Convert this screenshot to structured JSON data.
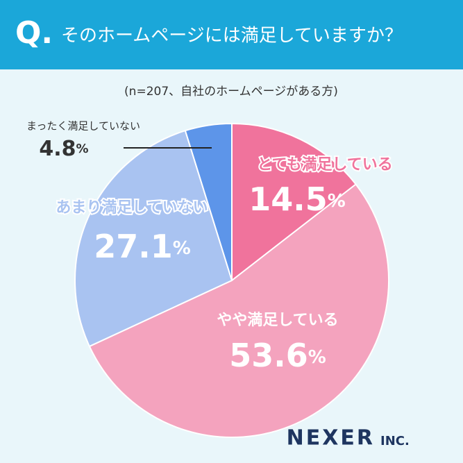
{
  "chart_data": {
    "type": "pie",
    "title_prefix": "Q.",
    "title": "そのホームページには満足していますか？",
    "subtitle": "(n=207、自社のホームページがある方)",
    "categories": [
      "とても満足している",
      "やや満足している",
      "あまり満足していない",
      "まったく満足していない"
    ],
    "values": [
      14.5,
      53.6,
      27.1,
      4.8
    ],
    "value_labels": [
      "14.5%",
      "53.6%",
      "27.1%",
      "4.8%"
    ],
    "colors": [
      "#f0739c",
      "#f4a3be",
      "#a9c3f1",
      "#5d95e9"
    ],
    "logo": "NEXER",
    "logo_suffix": "INC."
  }
}
